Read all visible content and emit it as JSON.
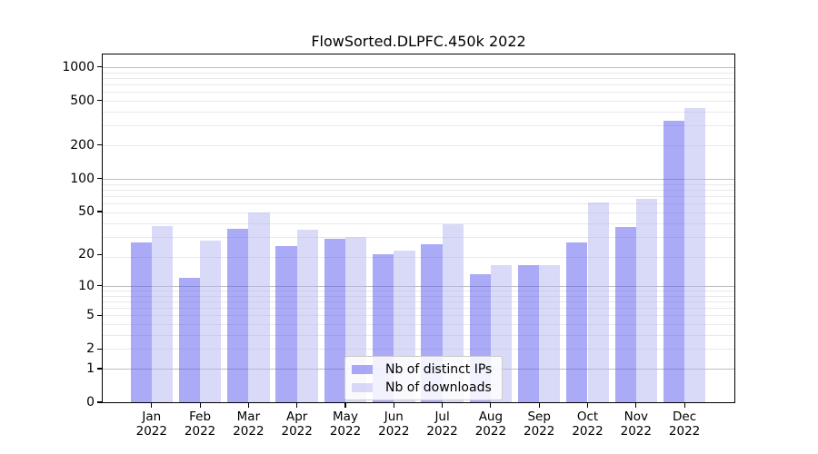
{
  "chart_data": {
    "type": "bar",
    "title": "FlowSorted.DLPFC.450k 2022",
    "categories": [
      "Jan 2022",
      "Feb 2022",
      "Mar 2022",
      "Apr 2022",
      "May 2022",
      "Jun 2022",
      "Jul 2022",
      "Aug 2022",
      "Sep 2022",
      "Oct 2022",
      "Nov 2022",
      "Dec 2022"
    ],
    "series": [
      {
        "name": "Nb of distinct IPs",
        "color": "#aaaaf7",
        "fill": "rgba(85,85,240,0.5)",
        "values": [
          26,
          12,
          35,
          24,
          28,
          20,
          25,
          13,
          16,
          26,
          36,
          330
        ]
      },
      {
        "name": "Nb of downloads",
        "color": "#d9d9f8",
        "fill": "rgba(180,180,242,0.5)",
        "values": [
          37,
          27,
          49,
          34,
          29,
          22,
          38,
          16,
          16,
          61,
          65,
          430
        ]
      }
    ],
    "y_ticks": [
      0,
      1,
      2,
      5,
      10,
      20,
      50,
      100,
      200,
      500,
      1000
    ],
    "y_scale": "log10(value+1)",
    "ylim": [
      0,
      1320
    ],
    "xlabel": "",
    "ylabel": "",
    "grid": "horizontal, minor light gray + major gray at 1/10/100/1000",
    "legend_position": "lower center inside plot",
    "background_color": "#ffffff",
    "axis_color": "#000000",
    "grid_minor_color": "#e9e9e9",
    "grid_major_color": "#bdbdbd"
  }
}
